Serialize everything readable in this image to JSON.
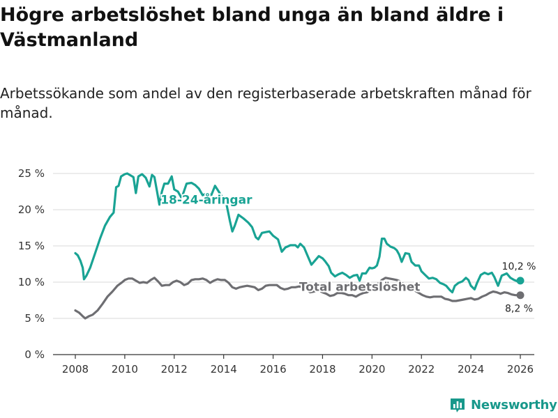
{
  "header": {
    "title": "Högre arbetslöshet bland unga än bland äldre i Västmanland",
    "subtitle": "Arbetssökande som andel av den registerbaserade arbetskraften månad för månad."
  },
  "brand": {
    "name": "Newsworthy",
    "color": "#18988b"
  },
  "colors": {
    "youth": "#19a394",
    "total": "#6e6e72",
    "grid": "#d9d9d9",
    "axis": "#333333"
  },
  "chart_data": {
    "type": "line",
    "title": "Högre arbetslöshet bland unga än bland äldre i Västmanland",
    "xlabel": "",
    "ylabel": "",
    "xlim": [
      2007.6,
      2026.6
    ],
    "ylim": [
      0,
      25
    ],
    "y_ticks": [
      0,
      5,
      10,
      15,
      20,
      25
    ],
    "y_tick_labels": [
      "0 %",
      "5 %",
      "10 %",
      "15 %",
      "20 %",
      "25 %"
    ],
    "x_ticks": [
      2008,
      2010,
      2012,
      2014,
      2016,
      2018,
      2020,
      2022,
      2024,
      2026
    ],
    "x_tick_labels": [
      "2008",
      "2010",
      "2012",
      "2014",
      "2016",
      "2018",
      "2020",
      "2022",
      "2024",
      "2026"
    ],
    "grid": true,
    "series": [
      {
        "name": "18-24-åringar",
        "label": "18-24-åringar",
        "end_label": "10,2 %",
        "points": [
          [
            2008.0,
            14.0
          ],
          [
            2008.1,
            13.7
          ],
          [
            2008.2,
            13.0
          ],
          [
            2008.3,
            12.0
          ],
          [
            2008.35,
            10.4
          ],
          [
            2008.45,
            10.9
          ],
          [
            2008.6,
            12.0
          ],
          [
            2008.8,
            14.0
          ],
          [
            2009.0,
            16.0
          ],
          [
            2009.2,
            17.8
          ],
          [
            2009.4,
            19.0
          ],
          [
            2009.55,
            19.6
          ],
          [
            2009.65,
            23.1
          ],
          [
            2009.75,
            23.3
          ],
          [
            2009.85,
            24.6
          ],
          [
            2010.0,
            24.9
          ],
          [
            2010.1,
            25.0
          ],
          [
            2010.25,
            24.7
          ],
          [
            2010.35,
            24.5
          ],
          [
            2010.45,
            22.3
          ],
          [
            2010.55,
            24.6
          ],
          [
            2010.7,
            24.9
          ],
          [
            2010.85,
            24.4
          ],
          [
            2011.0,
            23.2
          ],
          [
            2011.1,
            24.8
          ],
          [
            2011.2,
            24.5
          ],
          [
            2011.3,
            22.6
          ],
          [
            2011.4,
            20.7
          ],
          [
            2011.5,
            22.5
          ],
          [
            2011.6,
            23.6
          ],
          [
            2011.75,
            23.6
          ],
          [
            2011.9,
            24.6
          ],
          [
            2012.0,
            22.8
          ],
          [
            2012.15,
            22.5
          ],
          [
            2012.3,
            21.6
          ],
          [
            2012.5,
            23.6
          ],
          [
            2012.7,
            23.7
          ],
          [
            2012.85,
            23.4
          ],
          [
            2013.0,
            22.9
          ],
          [
            2013.15,
            22.0
          ],
          [
            2013.35,
            22.3
          ],
          [
            2013.5,
            22.0
          ],
          [
            2013.65,
            23.3
          ],
          [
            2013.8,
            22.5
          ],
          [
            2013.95,
            21.7
          ],
          [
            2014.1,
            21.0
          ],
          [
            2014.25,
            18.5
          ],
          [
            2014.35,
            17.0
          ],
          [
            2014.45,
            17.8
          ],
          [
            2014.6,
            19.3
          ],
          [
            2014.8,
            18.8
          ],
          [
            2015.0,
            18.2
          ],
          [
            2015.15,
            17.6
          ],
          [
            2015.3,
            16.2
          ],
          [
            2015.4,
            15.9
          ],
          [
            2015.55,
            16.8
          ],
          [
            2015.7,
            16.9
          ],
          [
            2015.85,
            17.0
          ],
          [
            2016.0,
            16.4
          ],
          [
            2016.2,
            15.9
          ],
          [
            2016.35,
            14.2
          ],
          [
            2016.5,
            14.8
          ],
          [
            2016.7,
            15.1
          ],
          [
            2016.9,
            15.1
          ],
          [
            2017.0,
            14.8
          ],
          [
            2017.1,
            15.3
          ],
          [
            2017.25,
            14.8
          ],
          [
            2017.4,
            13.6
          ],
          [
            2017.55,
            12.4
          ],
          [
            2017.7,
            13.0
          ],
          [
            2017.85,
            13.6
          ],
          [
            2018.0,
            13.3
          ],
          [
            2018.1,
            12.9
          ],
          [
            2018.25,
            12.2
          ],
          [
            2018.35,
            11.3
          ],
          [
            2018.5,
            10.8
          ],
          [
            2018.65,
            11.1
          ],
          [
            2018.8,
            11.3
          ],
          [
            2018.95,
            11.0
          ],
          [
            2019.1,
            10.6
          ],
          [
            2019.25,
            10.9
          ],
          [
            2019.4,
            11.0
          ],
          [
            2019.5,
            10.2
          ],
          [
            2019.6,
            11.2
          ],
          [
            2019.75,
            11.2
          ],
          [
            2019.9,
            12.0
          ],
          [
            2020.0,
            11.9
          ],
          [
            2020.1,
            12.0
          ],
          [
            2020.2,
            12.3
          ],
          [
            2020.3,
            13.5
          ],
          [
            2020.4,
            16.0
          ],
          [
            2020.5,
            16.0
          ],
          [
            2020.6,
            15.3
          ],
          [
            2020.75,
            14.9
          ],
          [
            2020.9,
            14.7
          ],
          [
            2021.0,
            14.4
          ],
          [
            2021.1,
            13.8
          ],
          [
            2021.2,
            12.8
          ],
          [
            2021.35,
            14.0
          ],
          [
            2021.5,
            13.9
          ],
          [
            2021.6,
            12.8
          ],
          [
            2021.75,
            12.3
          ],
          [
            2021.9,
            12.3
          ],
          [
            2022.0,
            11.5
          ],
          [
            2022.15,
            11.0
          ],
          [
            2022.3,
            10.5
          ],
          [
            2022.45,
            10.6
          ],
          [
            2022.6,
            10.4
          ],
          [
            2022.75,
            9.9
          ],
          [
            2022.9,
            9.7
          ],
          [
            2023.0,
            9.5
          ],
          [
            2023.15,
            8.9
          ],
          [
            2023.25,
            8.6
          ],
          [
            2023.35,
            9.5
          ],
          [
            2023.5,
            9.9
          ],
          [
            2023.65,
            10.1
          ],
          [
            2023.8,
            10.6
          ],
          [
            2023.9,
            10.3
          ],
          [
            2024.0,
            9.5
          ],
          [
            2024.15,
            9.0
          ],
          [
            2024.25,
            9.9
          ],
          [
            2024.4,
            11.0
          ],
          [
            2024.55,
            11.3
          ],
          [
            2024.7,
            11.1
          ],
          [
            2024.85,
            11.3
          ],
          [
            2024.95,
            10.7
          ],
          [
            2025.1,
            9.5
          ],
          [
            2025.25,
            10.9
          ],
          [
            2025.45,
            11.2
          ],
          [
            2025.6,
            10.6
          ],
          [
            2025.75,
            10.3
          ],
          [
            2025.9,
            10.1
          ],
          [
            2026.0,
            10.2
          ]
        ]
      },
      {
        "name": "Total arbetslöshet",
        "label": "Total arbetslöshet",
        "end_label": "8,2 %",
        "points": [
          [
            2008.0,
            6.1
          ],
          [
            2008.15,
            5.8
          ],
          [
            2008.3,
            5.3
          ],
          [
            2008.4,
            5.0
          ],
          [
            2008.55,
            5.3
          ],
          [
            2008.7,
            5.5
          ],
          [
            2008.9,
            6.1
          ],
          [
            2009.1,
            7.0
          ],
          [
            2009.3,
            8.0
          ],
          [
            2009.5,
            8.7
          ],
          [
            2009.7,
            9.5
          ],
          [
            2009.9,
            10.0
          ],
          [
            2010.0,
            10.3
          ],
          [
            2010.15,
            10.5
          ],
          [
            2010.3,
            10.5
          ],
          [
            2010.45,
            10.2
          ],
          [
            2010.6,
            9.9
          ],
          [
            2010.75,
            10.0
          ],
          [
            2010.9,
            9.9
          ],
          [
            2011.05,
            10.3
          ],
          [
            2011.2,
            10.6
          ],
          [
            2011.35,
            10.1
          ],
          [
            2011.5,
            9.5
          ],
          [
            2011.65,
            9.6
          ],
          [
            2011.8,
            9.6
          ],
          [
            2011.95,
            10.0
          ],
          [
            2012.1,
            10.2
          ],
          [
            2012.25,
            10.0
          ],
          [
            2012.4,
            9.6
          ],
          [
            2012.55,
            9.8
          ],
          [
            2012.7,
            10.3
          ],
          [
            2012.85,
            10.4
          ],
          [
            2013.0,
            10.4
          ],
          [
            2013.15,
            10.5
          ],
          [
            2013.3,
            10.3
          ],
          [
            2013.45,
            9.9
          ],
          [
            2013.6,
            10.2
          ],
          [
            2013.75,
            10.4
          ],
          [
            2013.9,
            10.3
          ],
          [
            2014.05,
            10.3
          ],
          [
            2014.2,
            9.9
          ],
          [
            2014.35,
            9.3
          ],
          [
            2014.5,
            9.1
          ],
          [
            2014.65,
            9.3
          ],
          [
            2014.8,
            9.4
          ],
          [
            2014.95,
            9.5
          ],
          [
            2015.1,
            9.4
          ],
          [
            2015.25,
            9.3
          ],
          [
            2015.4,
            8.9
          ],
          [
            2015.55,
            9.1
          ],
          [
            2015.7,
            9.5
          ],
          [
            2015.85,
            9.6
          ],
          [
            2016.0,
            9.6
          ],
          [
            2016.15,
            9.6
          ],
          [
            2016.3,
            9.2
          ],
          [
            2016.45,
            9.0
          ],
          [
            2016.6,
            9.1
          ],
          [
            2016.75,
            9.3
          ],
          [
            2016.9,
            9.3
          ],
          [
            2017.05,
            9.4
          ],
          [
            2017.2,
            9.3
          ],
          [
            2017.35,
            9.0
          ],
          [
            2017.5,
            8.6
          ],
          [
            2017.65,
            8.7
          ],
          [
            2017.8,
            8.9
          ],
          [
            2018.0,
            8.6
          ],
          [
            2018.15,
            8.4
          ],
          [
            2018.3,
            8.1
          ],
          [
            2018.45,
            8.2
          ],
          [
            2018.6,
            8.5
          ],
          [
            2018.75,
            8.5
          ],
          [
            2018.9,
            8.4
          ],
          [
            2019.05,
            8.2
          ],
          [
            2019.2,
            8.2
          ],
          [
            2019.35,
            8.0
          ],
          [
            2019.5,
            8.3
          ],
          [
            2019.65,
            8.5
          ],
          [
            2019.8,
            8.6
          ],
          [
            2019.95,
            8.9
          ],
          [
            2020.1,
            9.3
          ],
          [
            2020.25,
            9.8
          ],
          [
            2020.4,
            10.3
          ],
          [
            2020.55,
            10.6
          ],
          [
            2020.7,
            10.5
          ],
          [
            2020.85,
            10.4
          ],
          [
            2021.0,
            10.3
          ],
          [
            2021.15,
            10.1
          ],
          [
            2021.3,
            9.6
          ],
          [
            2021.45,
            9.5
          ],
          [
            2021.6,
            9.1
          ],
          [
            2021.75,
            8.8
          ],
          [
            2021.9,
            8.5
          ],
          [
            2022.05,
            8.2
          ],
          [
            2022.2,
            8.0
          ],
          [
            2022.35,
            7.9
          ],
          [
            2022.5,
            8.0
          ],
          [
            2022.65,
            8.0
          ],
          [
            2022.8,
            8.0
          ],
          [
            2022.95,
            7.7
          ],
          [
            2023.1,
            7.6
          ],
          [
            2023.25,
            7.4
          ],
          [
            2023.4,
            7.4
          ],
          [
            2023.55,
            7.5
          ],
          [
            2023.7,
            7.6
          ],
          [
            2023.85,
            7.7
          ],
          [
            2024.0,
            7.8
          ],
          [
            2024.15,
            7.6
          ],
          [
            2024.3,
            7.7
          ],
          [
            2024.45,
            8.0
          ],
          [
            2024.6,
            8.2
          ],
          [
            2024.75,
            8.5
          ],
          [
            2024.9,
            8.7
          ],
          [
            2025.05,
            8.6
          ],
          [
            2025.2,
            8.4
          ],
          [
            2025.35,
            8.6
          ],
          [
            2025.5,
            8.5
          ],
          [
            2025.65,
            8.3
          ],
          [
            2025.8,
            8.2
          ],
          [
            2026.0,
            8.2
          ]
        ]
      }
    ]
  }
}
